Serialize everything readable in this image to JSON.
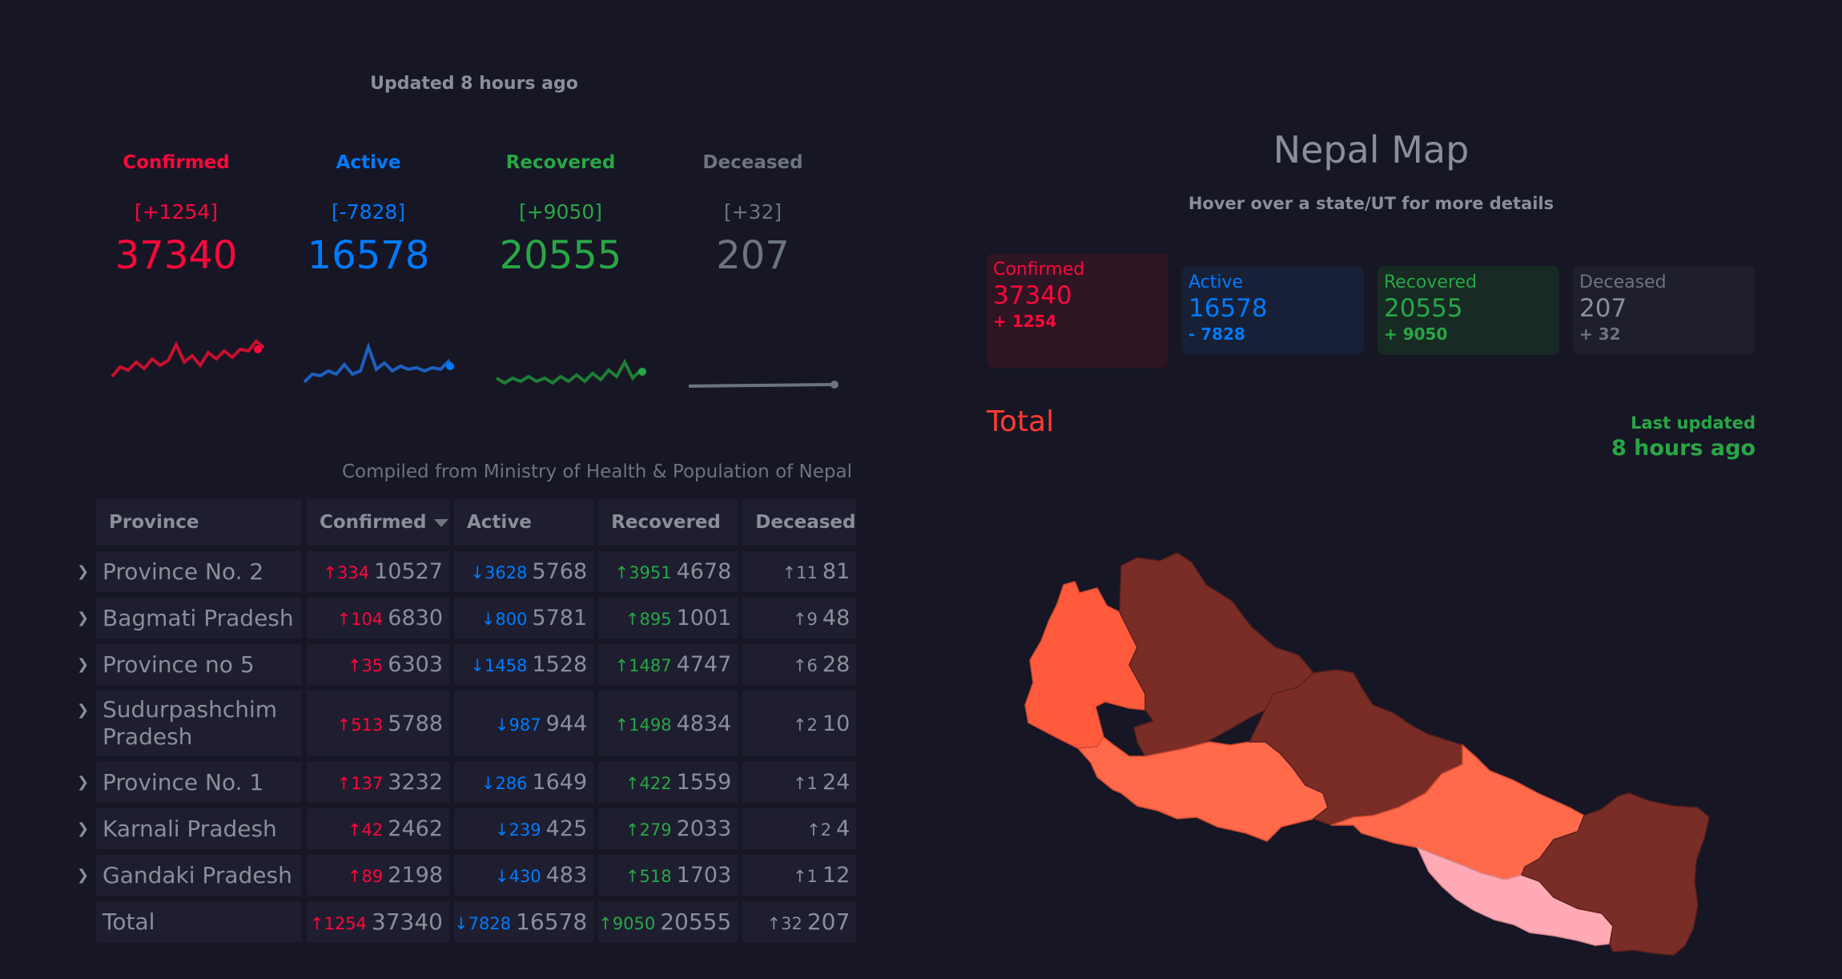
{
  "updated": "Updated 8 hours ago",
  "level": [
    {
      "label": "Confirmed",
      "delta": "[+1254]",
      "value": "37340"
    },
    {
      "label": "Active",
      "delta": "[-7828]",
      "value": "16578"
    },
    {
      "label": "Recovered",
      "delta": "[+9050]",
      "value": "20555"
    },
    {
      "label": "Deceased",
      "delta": "[+32]",
      "value": "207"
    }
  ],
  "compiled": "Compiled from Ministry of Health & Population of Nepal",
  "table": {
    "headers": [
      "Province",
      "Confirmed",
      "Active",
      "Recovered",
      "Deceased"
    ],
    "rows": [
      {
        "name": "Province No. 2",
        "c_d": "334",
        "c": "10527",
        "a_d": "3628",
        "a": "5768",
        "r_d": "3951",
        "r": "4678",
        "d_d": "11",
        "d": "81"
      },
      {
        "name": "Bagmati Pradesh",
        "c_d": "104",
        "c": "6830",
        "a_d": "800",
        "a": "5781",
        "r_d": "895",
        "r": "1001",
        "d_d": "9",
        "d": "48"
      },
      {
        "name": "Province no 5",
        "c_d": "35",
        "c": "6303",
        "a_d": "1458",
        "a": "1528",
        "r_d": "1487",
        "r": "4747",
        "d_d": "6",
        "d": "28"
      },
      {
        "name": "Sudurpashchim Pradesh",
        "c_d": "513",
        "c": "5788",
        "a_d": "987",
        "a": "944",
        "r_d": "1498",
        "r": "4834",
        "d_d": "2",
        "d": "10"
      },
      {
        "name": "Province No. 1",
        "c_d": "137",
        "c": "3232",
        "a_d": "286",
        "a": "1649",
        "r_d": "422",
        "r": "1559",
        "d_d": "1",
        "d": "24"
      },
      {
        "name": "Karnali Pradesh",
        "c_d": "42",
        "c": "2462",
        "a_d": "239",
        "a": "425",
        "r_d": "279",
        "r": "2033",
        "d_d": "2",
        "d": "4"
      },
      {
        "name": "Gandaki Pradesh",
        "c_d": "89",
        "c": "2198",
        "a_d": "430",
        "a": "483",
        "r_d": "518",
        "r": "1703",
        "d_d": "1",
        "d": "12"
      }
    ],
    "total": {
      "name": "Total",
      "c_d": "1254",
      "c": "37340",
      "a_d": "7828",
      "a": "16578",
      "r_d": "9050",
      "r": "20555",
      "d_d": "32",
      "d": "207"
    }
  },
  "map": {
    "title": "Nepal Map",
    "subtitle": "Hover over a state/UT for more details",
    "boxes": [
      {
        "label": "Confirmed",
        "value": "37340",
        "delta": "+ 1254"
      },
      {
        "label": "Active",
        "value": "16578",
        "delta": "- 7828"
      },
      {
        "label": "Recovered",
        "value": "20555",
        "delta": "+ 9050"
      },
      {
        "label": "Deceased",
        "value": "207",
        "delta": "+ 32"
      }
    ],
    "total_label": "Total",
    "last_updated_label": "Last updated",
    "last_updated_value": "8 hours ago"
  },
  "colors": {
    "confirmed": "#ff073a",
    "active": "#007bff",
    "recovered": "#28a745",
    "deceased": "#6c757d"
  }
}
